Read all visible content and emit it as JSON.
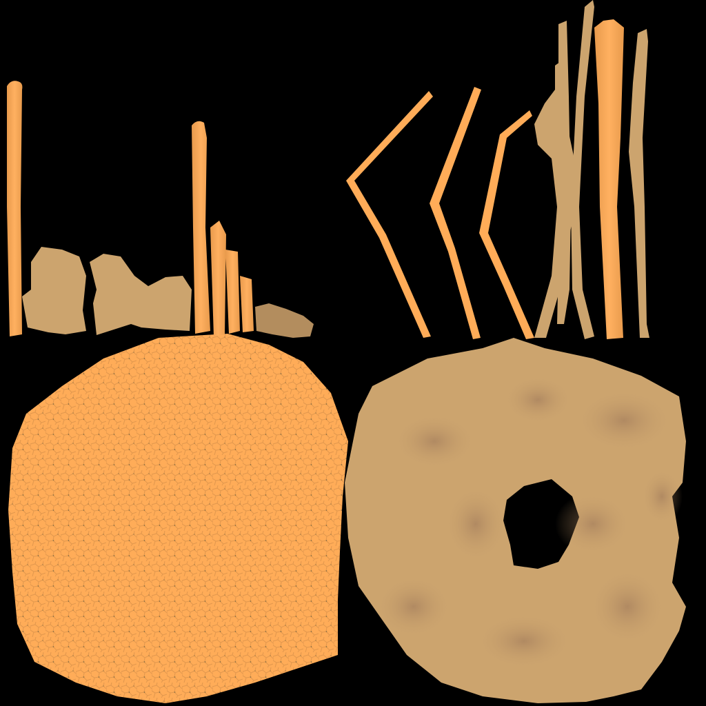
{
  "image": {
    "kind": "uv-texture-atlas",
    "background": "#000000",
    "colors": {
      "orange": "#FFAC58",
      "orange_shade": "#E89A4C",
      "orange_cell_line": "#C98A45",
      "orange_crack": "#5E5A3A",
      "tan": "#CCA46E",
      "tan_shade": "#B38D5E",
      "tan_blotch": "#8C6A52"
    },
    "islands": [
      {
        "name": "orange-disc",
        "color": "orange"
      },
      {
        "name": "tan-ring",
        "color": "tan"
      },
      {
        "name": "left-strips",
        "color": "orange"
      },
      {
        "name": "right-strips",
        "color": "tan"
      }
    ]
  }
}
